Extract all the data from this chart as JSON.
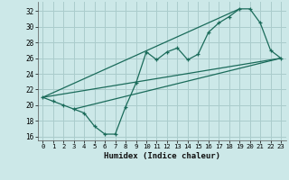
{
  "xlabel": "Humidex (Indice chaleur)",
  "bg_color": "#cce8e8",
  "grid_color": "#aacccc",
  "line_color": "#1a6b5a",
  "xlim": [
    -0.5,
    23.5
  ],
  "ylim": [
    15.5,
    33.2
  ],
  "xticks": [
    0,
    1,
    2,
    3,
    4,
    5,
    6,
    7,
    8,
    9,
    10,
    11,
    12,
    13,
    14,
    15,
    16,
    17,
    18,
    19,
    20,
    21,
    22,
    23
  ],
  "yticks": [
    16,
    18,
    20,
    22,
    24,
    26,
    28,
    30,
    32
  ],
  "zigzag_x": [
    0,
    1,
    2,
    3,
    4,
    5,
    6,
    7,
    8,
    9,
    10,
    11,
    12,
    13,
    14,
    15,
    16,
    17,
    18,
    19,
    20,
    21,
    22,
    23
  ],
  "zigzag_y": [
    21,
    20.5,
    20,
    19.5,
    19,
    17.3,
    16.3,
    16.3,
    19.8,
    22.8,
    26.8,
    25.8,
    26.8,
    27.3,
    25.8,
    26.5,
    29.3,
    30.5,
    31.3,
    32.3,
    32.3,
    30.5,
    27.0,
    26.0
  ],
  "line1_x": [
    0,
    23
  ],
  "line1_y": [
    21,
    26
  ],
  "line2_x": [
    0,
    19
  ],
  "line2_y": [
    21,
    32.3
  ],
  "line3_x": [
    3,
    23
  ],
  "line3_y": [
    19.5,
    26
  ]
}
